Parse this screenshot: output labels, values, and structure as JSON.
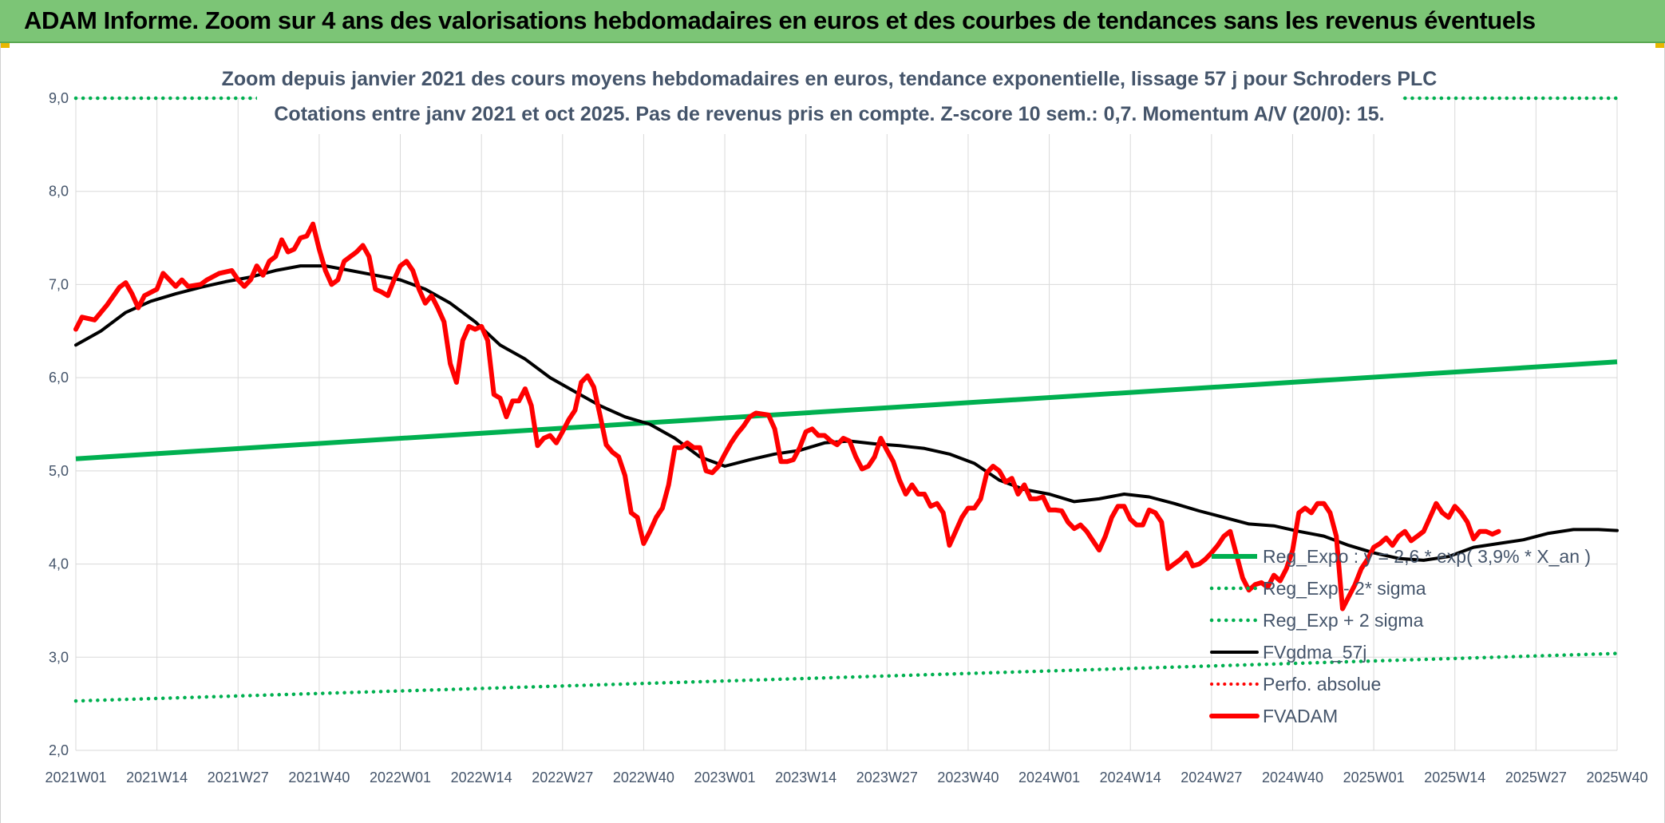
{
  "banner": {
    "title": "ADAM Informe. Zoom sur 4 ans des valorisations hebdomadaires en euros et des courbes de tendances sans les revenus éventuels"
  },
  "colors": {
    "banner_bg": "#7cc576",
    "regression": "#00b050",
    "trend": "#000000",
    "price": "#ff0000",
    "text": "#44546a",
    "grid": "#d9d9d9"
  },
  "chart_data": {
    "type": "line",
    "title_line1": "Zoom depuis janvier 2021 des cours moyens hebdomadaires en euros, tendance exponentielle, lissage 57 j pour Schroders PLC",
    "title_line2": "Cotations entre janv 2021 et oct 2025. Pas de revenus pris en compte. Z-score 10 sem.: 0,7. Momentum A/V (20/0): 15.",
    "x_tick_labels": [
      "2021W01",
      "2021W14",
      "2021W27",
      "2021W40",
      "2022W01",
      "2022W14",
      "2022W27",
      "2022W40",
      "2023W01",
      "2023W14",
      "2023W27",
      "2023W40",
      "2024W01",
      "2024W14",
      "2024W27",
      "2024W40",
      "2025W01",
      "2025W14",
      "2025W27",
      "2025W40"
    ],
    "y_tick_labels": [
      "2,0",
      "3,0",
      "4,0",
      "5,0",
      "6,0",
      "7,0",
      "8,0",
      "9,0"
    ],
    "ylim": [
      2.0,
      9.0
    ],
    "x_range_weeks": [
      0,
      247
    ],
    "grid": true,
    "legend_position": "bottom-right",
    "series": [
      {
        "name": "Reg_Expo : y = 2,6 * exp( 3,9% * X_an )",
        "style": "solid-green",
        "points": [
          [
            0,
            5.13
          ],
          [
            247,
            6.17
          ]
        ]
      },
      {
        "name": "Reg_Exp - 2* sigma",
        "style": "dotted-green",
        "points": [
          [
            0,
            2.53
          ],
          [
            247,
            3.04
          ]
        ]
      },
      {
        "name": "Reg_Exp + 2 sigma",
        "style": "dotted-green",
        "points": [
          [
            0,
            9.0
          ],
          [
            247,
            9.0
          ]
        ]
      },
      {
        "name": "FVgdma_57j",
        "style": "solid-black",
        "points": [
          [
            0,
            6.35
          ],
          [
            4,
            6.5
          ],
          [
            8,
            6.7
          ],
          [
            12,
            6.82
          ],
          [
            16,
            6.9
          ],
          [
            20,
            6.97
          ],
          [
            24,
            7.03
          ],
          [
            28,
            7.08
          ],
          [
            32,
            7.15
          ],
          [
            36,
            7.2
          ],
          [
            40,
            7.2
          ],
          [
            44,
            7.15
          ],
          [
            48,
            7.1
          ],
          [
            52,
            7.05
          ],
          [
            56,
            6.95
          ],
          [
            60,
            6.8
          ],
          [
            64,
            6.6
          ],
          [
            68,
            6.35
          ],
          [
            72,
            6.2
          ],
          [
            76,
            6.0
          ],
          [
            80,
            5.85
          ],
          [
            84,
            5.7
          ],
          [
            88,
            5.58
          ],
          [
            92,
            5.5
          ],
          [
            96,
            5.35
          ],
          [
            100,
            5.15
          ],
          [
            104,
            5.05
          ],
          [
            108,
            5.12
          ],
          [
            112,
            5.18
          ],
          [
            116,
            5.22
          ],
          [
            120,
            5.3
          ],
          [
            124,
            5.32
          ],
          [
            128,
            5.29
          ],
          [
            132,
            5.27
          ],
          [
            136,
            5.24
          ],
          [
            140,
            5.18
          ],
          [
            144,
            5.08
          ],
          [
            148,
            4.9
          ],
          [
            152,
            4.8
          ],
          [
            156,
            4.75
          ],
          [
            160,
            4.67
          ],
          [
            164,
            4.7
          ],
          [
            168,
            4.75
          ],
          [
            172,
            4.72
          ],
          [
            176,
            4.65
          ],
          [
            180,
            4.57
          ],
          [
            184,
            4.5
          ],
          [
            188,
            4.43
          ],
          [
            192,
            4.41
          ],
          [
            196,
            4.35
          ],
          [
            200,
            4.3
          ],
          [
            204,
            4.2
          ],
          [
            208,
            4.12
          ],
          [
            212,
            4.06
          ],
          [
            216,
            4.04
          ],
          [
            220,
            4.08
          ],
          [
            224,
            4.18
          ],
          [
            228,
            4.22
          ],
          [
            232,
            4.26
          ],
          [
            236,
            4.33
          ],
          [
            240,
            4.37
          ],
          [
            244,
            4.37
          ],
          [
            247,
            4.36
          ]
        ]
      },
      {
        "name": "Perfo. absolue",
        "style": "dotted-red",
        "points": []
      },
      {
        "name": "FVADAM",
        "style": "solid-red",
        "points": [
          [
            0,
            6.52
          ],
          [
            1,
            6.65
          ],
          [
            3,
            6.62
          ],
          [
            5,
            6.78
          ],
          [
            7,
            6.97
          ],
          [
            8,
            7.02
          ],
          [
            9,
            6.9
          ],
          [
            10,
            6.75
          ],
          [
            11,
            6.88
          ],
          [
            13,
            6.95
          ],
          [
            14,
            7.12
          ],
          [
            15,
            7.05
          ],
          [
            16,
            6.98
          ],
          [
            17,
            7.05
          ],
          [
            18,
            6.98
          ],
          [
            20,
            7.0
          ],
          [
            21,
            7.05
          ],
          [
            23,
            7.12
          ],
          [
            25,
            7.15
          ],
          [
            26,
            7.05
          ],
          [
            27,
            6.98
          ],
          [
            28,
            7.05
          ],
          [
            29,
            7.2
          ],
          [
            30,
            7.1
          ],
          [
            31,
            7.25
          ],
          [
            32,
            7.3
          ],
          [
            33,
            7.48
          ],
          [
            34,
            7.35
          ],
          [
            35,
            7.38
          ],
          [
            36,
            7.5
          ],
          [
            37,
            7.52
          ],
          [
            38,
            7.65
          ],
          [
            39,
            7.38
          ],
          [
            40,
            7.15
          ],
          [
            41,
            7.0
          ],
          [
            42,
            7.05
          ],
          [
            43,
            7.25
          ],
          [
            44,
            7.3
          ],
          [
            45,
            7.35
          ],
          [
            46,
            7.42
          ],
          [
            47,
            7.3
          ],
          [
            48,
            6.95
          ],
          [
            49,
            6.92
          ],
          [
            50,
            6.88
          ],
          [
            51,
            7.05
          ],
          [
            52,
            7.2
          ],
          [
            53,
            7.25
          ],
          [
            54,
            7.15
          ],
          [
            55,
            6.95
          ],
          [
            56,
            6.8
          ],
          [
            57,
            6.88
          ],
          [
            58,
            6.75
          ],
          [
            59,
            6.6
          ],
          [
            60,
            6.15
          ],
          [
            61,
            5.95
          ],
          [
            62,
            6.4
          ],
          [
            63,
            6.55
          ],
          [
            64,
            6.52
          ],
          [
            65,
            6.55
          ],
          [
            66,
            6.4
          ],
          [
            67,
            5.82
          ],
          [
            68,
            5.78
          ],
          [
            69,
            5.58
          ],
          [
            70,
            5.75
          ],
          [
            71,
            5.75
          ],
          [
            72,
            5.88
          ],
          [
            73,
            5.7
          ],
          [
            74,
            5.27
          ],
          [
            75,
            5.35
          ],
          [
            76,
            5.38
          ],
          [
            77,
            5.3
          ],
          [
            78,
            5.42
          ],
          [
            79,
            5.55
          ],
          [
            80,
            5.65
          ],
          [
            81,
            5.95
          ],
          [
            82,
            6.02
          ],
          [
            83,
            5.9
          ],
          [
            84,
            5.6
          ],
          [
            85,
            5.28
          ],
          [
            86,
            5.2
          ],
          [
            87,
            5.15
          ],
          [
            88,
            4.95
          ],
          [
            89,
            4.55
          ],
          [
            90,
            4.5
          ],
          [
            91,
            4.22
          ],
          [
            92,
            4.35
          ],
          [
            93,
            4.5
          ],
          [
            94,
            4.6
          ],
          [
            95,
            4.85
          ],
          [
            96,
            5.25
          ],
          [
            97,
            5.25
          ],
          [
            98,
            5.3
          ],
          [
            99,
            5.25
          ],
          [
            100,
            5.25
          ],
          [
            101,
            5.0
          ],
          [
            102,
            4.98
          ],
          [
            103,
            5.05
          ],
          [
            104,
            5.18
          ],
          [
            105,
            5.3
          ],
          [
            106,
            5.4
          ],
          [
            107,
            5.48
          ],
          [
            108,
            5.58
          ],
          [
            109,
            5.62
          ],
          [
            111,
            5.6
          ],
          [
            112,
            5.45
          ],
          [
            113,
            5.1
          ],
          [
            114,
            5.1
          ],
          [
            115,
            5.12
          ],
          [
            116,
            5.25
          ],
          [
            117,
            5.42
          ],
          [
            118,
            5.45
          ],
          [
            119,
            5.38
          ],
          [
            120,
            5.38
          ],
          [
            121,
            5.32
          ],
          [
            122,
            5.28
          ],
          [
            123,
            5.35
          ],
          [
            124,
            5.32
          ],
          [
            125,
            5.15
          ],
          [
            126,
            5.02
          ],
          [
            127,
            5.05
          ],
          [
            128,
            5.15
          ],
          [
            129,
            5.35
          ],
          [
            130,
            5.22
          ],
          [
            131,
            5.1
          ],
          [
            132,
            4.9
          ],
          [
            133,
            4.75
          ],
          [
            134,
            4.85
          ],
          [
            135,
            4.75
          ],
          [
            136,
            4.75
          ],
          [
            137,
            4.62
          ],
          [
            138,
            4.65
          ],
          [
            139,
            4.55
          ],
          [
            140,
            4.2
          ],
          [
            141,
            4.35
          ],
          [
            142,
            4.5
          ],
          [
            143,
            4.6
          ],
          [
            144,
            4.6
          ],
          [
            145,
            4.7
          ],
          [
            146,
            4.98
          ],
          [
            147,
            5.05
          ],
          [
            148,
            5.0
          ],
          [
            149,
            4.88
          ],
          [
            150,
            4.92
          ],
          [
            151,
            4.75
          ],
          [
            152,
            4.85
          ],
          [
            153,
            4.7
          ],
          [
            154,
            4.7
          ],
          [
            155,
            4.72
          ],
          [
            156,
            4.58
          ],
          [
            157,
            4.58
          ],
          [
            158,
            4.57
          ],
          [
            159,
            4.45
          ],
          [
            160,
            4.38
          ],
          [
            161,
            4.42
          ],
          [
            162,
            4.35
          ],
          [
            163,
            4.25
          ],
          [
            164,
            4.15
          ],
          [
            165,
            4.3
          ],
          [
            166,
            4.5
          ],
          [
            167,
            4.62
          ],
          [
            168,
            4.62
          ],
          [
            169,
            4.48
          ],
          [
            170,
            4.42
          ],
          [
            171,
            4.42
          ],
          [
            172,
            4.58
          ],
          [
            173,
            4.55
          ],
          [
            174,
            4.45
          ],
          [
            175,
            3.95
          ],
          [
            176,
            4.0
          ],
          [
            177,
            4.05
          ],
          [
            178,
            4.12
          ],
          [
            179,
            3.98
          ],
          [
            180,
            4.0
          ],
          [
            181,
            4.05
          ],
          [
            182,
            4.12
          ],
          [
            183,
            4.2
          ],
          [
            184,
            4.3
          ],
          [
            185,
            4.35
          ],
          [
            186,
            4.1
          ],
          [
            187,
            3.85
          ],
          [
            188,
            3.72
          ],
          [
            189,
            3.78
          ],
          [
            190,
            3.8
          ],
          [
            191,
            3.75
          ],
          [
            192,
            3.88
          ],
          [
            193,
            3.82
          ],
          [
            194,
            3.95
          ],
          [
            195,
            4.15
          ],
          [
            196,
            4.55
          ],
          [
            197,
            4.6
          ],
          [
            198,
            4.55
          ],
          [
            199,
            4.65
          ],
          [
            200,
            4.65
          ],
          [
            201,
            4.55
          ],
          [
            202,
            4.3
          ],
          [
            203,
            3.52
          ],
          [
            204,
            3.65
          ],
          [
            205,
            3.78
          ],
          [
            206,
            3.95
          ],
          [
            207,
            4.05
          ],
          [
            208,
            4.18
          ],
          [
            209,
            4.22
          ],
          [
            210,
            4.28
          ],
          [
            211,
            4.2
          ],
          [
            212,
            4.3
          ],
          [
            213,
            4.35
          ],
          [
            214,
            4.25
          ],
          [
            215,
            4.3
          ],
          [
            216,
            4.35
          ],
          [
            217,
            4.5
          ],
          [
            218,
            4.65
          ],
          [
            219,
            4.55
          ],
          [
            220,
            4.5
          ],
          [
            221,
            4.62
          ],
          [
            222,
            4.55
          ],
          [
            223,
            4.45
          ],
          [
            224,
            4.27
          ],
          [
            225,
            4.35
          ],
          [
            226,
            4.35
          ],
          [
            227,
            4.32
          ],
          [
            228,
            4.35
          ]
        ]
      }
    ]
  }
}
